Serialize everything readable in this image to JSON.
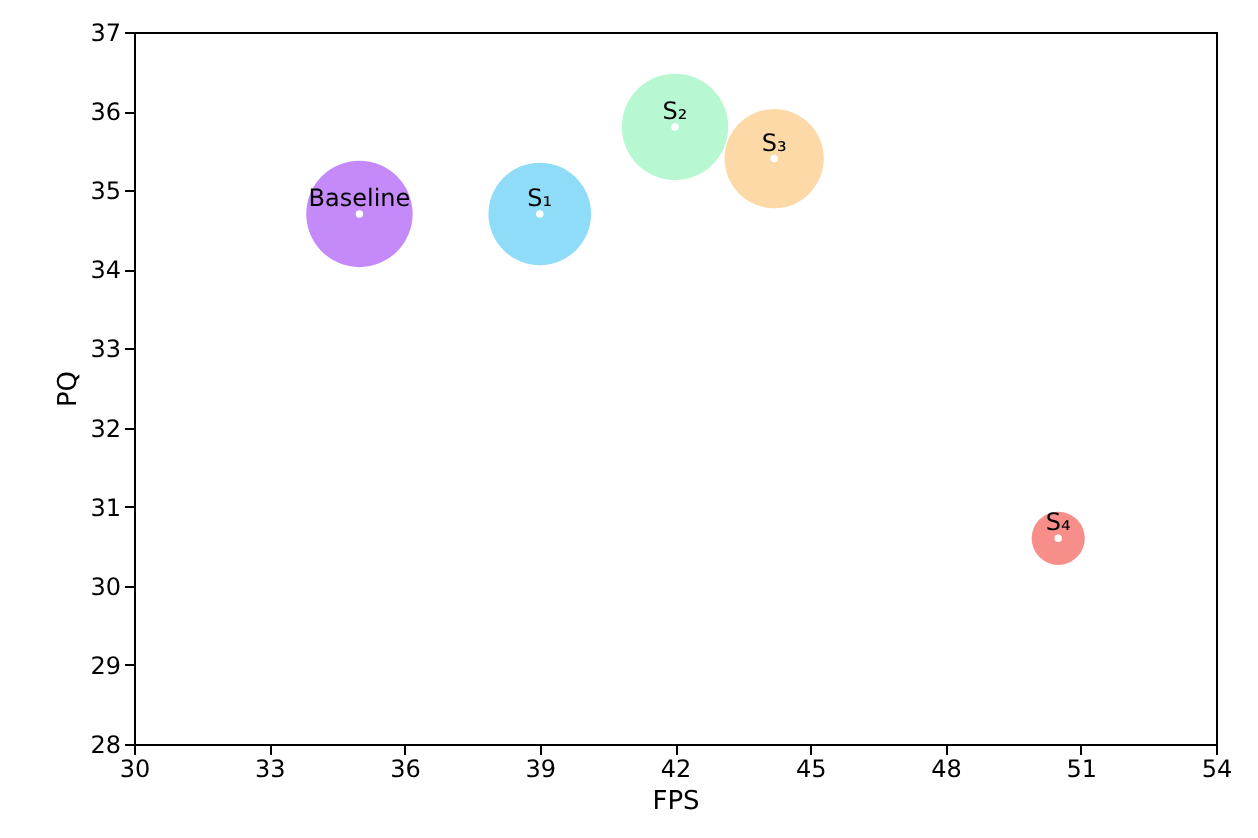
{
  "chart_data": {
    "type": "bubble",
    "xlabel": "FPS",
    "ylabel": "PQ",
    "x": [
      35,
      39,
      42,
      44.2,
      50.5
    ],
    "series": [
      {
        "colors": [
          "#c58af9",
          "#8fdcf9",
          "#b7f7d2",
          "#fdd9a8",
          "#f88e8a"
        ],
        "values": [
          34.7,
          34.7,
          35.8,
          35.4,
          30.6
        ],
        "sizes": [
          1,
          0.93,
          1,
          0.87,
          0.25
        ]
      },
      {
        "type": "scatter",
        "color": "#ffffff",
        "marker": "circle",
        "values": [
          34.7,
          34.7,
          35.8,
          35.4,
          30.6
        ]
      }
    ],
    "annotations": [
      {
        "text": "Baseline",
        "x": 35,
        "y": 34.7
      },
      {
        "text": "S₁",
        "x": 39,
        "y": 34.7
      },
      {
        "text": "S₂",
        "x": 42,
        "y": 35.8
      },
      {
        "text": "S₃",
        "x": 44.2,
        "y": 35.4
      },
      {
        "text": "S₄",
        "x": 50.5,
        "y": 30.6
      }
    ],
    "xlim": [
      30,
      54
    ],
    "xticks": [
      30,
      33,
      36,
      39,
      42,
      45,
      48,
      51,
      54
    ],
    "ylim": [
      28,
      37
    ],
    "yticks": [
      28,
      29,
      30,
      31,
      32,
      33,
      34,
      35,
      36,
      37
    ],
    "grid": false
  }
}
